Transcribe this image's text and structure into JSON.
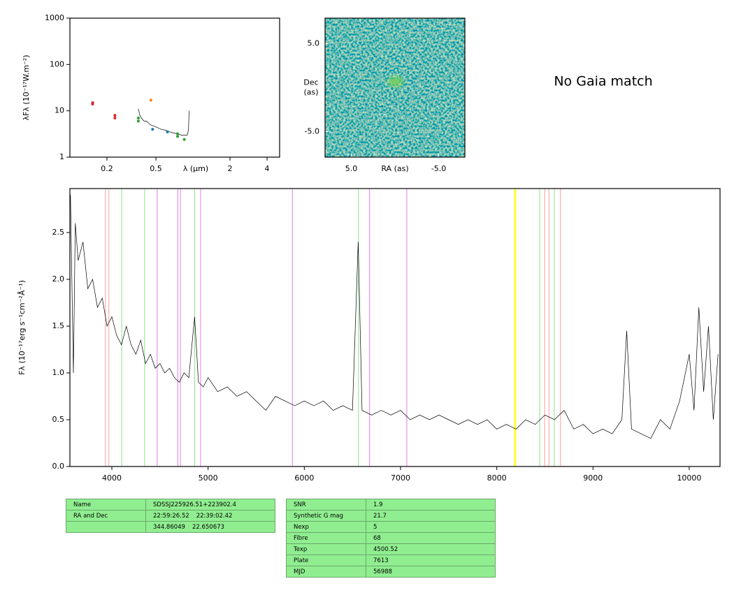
{
  "chart_data": [
    {
      "type": "scatter",
      "xlabel": "λ (μm)",
      "ylabel": "λFλ (10⁻¹⁷W.m⁻²)",
      "xlog": true,
      "ylog": true,
      "xlim": [
        0.1,
        5.06
      ],
      "ylim": [
        1,
        1000
      ],
      "xticks": [
        0.2,
        0.5,
        2,
        4
      ],
      "yticks": [
        1,
        10,
        100,
        1000
      ],
      "series": [
        {
          "mode": "line",
          "color": "#000000",
          "x": [
            0.36,
            0.37,
            0.38,
            0.4,
            0.42,
            0.45,
            0.5,
            0.55,
            0.6,
            0.65,
            0.7,
            0.75,
            0.8,
            0.85,
            0.9,
            0.92,
            0.93
          ],
          "values": [
            11,
            8,
            7,
            6,
            6,
            5,
            4.5,
            4,
            3.8,
            3.5,
            3.3,
            3.2,
            3,
            3,
            3,
            4,
            10
          ]
        },
        {
          "mode": "points",
          "color": "#d62728",
          "x": [
            0.153,
            0.153,
            0.232,
            0.232
          ],
          "values": [
            15,
            14,
            8,
            7
          ]
        },
        {
          "mode": "points",
          "color": "#ff7f0e",
          "x": [
            0.455
          ],
          "values": [
            17
          ]
        },
        {
          "mode": "points",
          "color": "#2ca02c",
          "x": [
            0.36,
            0.36,
            0.62,
            0.75,
            0.75,
            0.85
          ],
          "values": [
            7,
            6,
            3.5,
            3.2,
            2.8,
            2.4
          ]
        },
        {
          "mode": "points",
          "color": "#1f77b4",
          "x": [
            0.47,
            0.62
          ],
          "values": [
            4,
            3.5
          ]
        }
      ]
    },
    {
      "type": "image",
      "xlabel": "RA (as)",
      "ylabel": [
        "Dec",
        "(as)"
      ],
      "xlim": [
        8,
        -8
      ],
      "ylim": [
        -7.9,
        7.9
      ],
      "xticks": [
        {
          "value": 5,
          "label": "5.0"
        },
        {
          "value": -5,
          "label": "-5.0"
        }
      ],
      "yticks": [
        {
          "value": 5,
          "label": "5.0"
        },
        {
          "value": -5,
          "label": "-5.0"
        }
      ]
    },
    {
      "type": "line",
      "ylabel": "Fλ (10⁻¹⁷erg s⁻¹cm⁻²Å⁻¹)",
      "xlim": [
        3564,
        10320
      ],
      "ylim": [
        0,
        2.97
      ],
      "xticks": [
        4000,
        5000,
        6000,
        7000,
        8000,
        9000,
        10000
      ],
      "yticks": [
        {
          "value": 0,
          "label": "0.0"
        },
        0.5,
        {
          "value": 1,
          "label": "1.0"
        },
        1.5,
        {
          "value": 2,
          "label": "2.0"
        },
        2.5
      ],
      "lines": [
        {
          "x": 3934,
          "color": "#f4a0a0"
        },
        {
          "x": 3969,
          "color": "#f4a0a0"
        },
        {
          "x": 4102,
          "color": "#90e090"
        },
        {
          "x": 4341,
          "color": "#90e090"
        },
        {
          "x": 4471,
          "color": "#e080e0"
        },
        {
          "x": 4686,
          "color": "#e080e0"
        },
        {
          "x": 4713,
          "color": "#e080e0"
        },
        {
          "x": 4861,
          "color": "#90e090"
        },
        {
          "x": 4922,
          "color": "#e080e0"
        },
        {
          "x": 5876,
          "color": "#e080e0"
        },
        {
          "x": 6563,
          "color": "#90e090"
        },
        {
          "x": 6678,
          "color": "#e080e0"
        },
        {
          "x": 7065,
          "color": "#e080e0"
        },
        {
          "x": 8190,
          "color": "#ffff30",
          "width": 3
        },
        {
          "x": 8446,
          "color": "#90e090"
        },
        {
          "x": 8498,
          "color": "#f4a0a0"
        },
        {
          "x": 8542,
          "color": "#f4a0a0"
        },
        {
          "x": 8598,
          "color": "#90e090"
        },
        {
          "x": 8662,
          "color": "#f4a0a0"
        }
      ],
      "series": [
        {
          "color": "#000000",
          "x": [
            3570,
            3600,
            3620,
            3650,
            3700,
            3750,
            3800,
            3850,
            3900,
            3950,
            4000,
            4050,
            4100,
            4150,
            4200,
            4250,
            4300,
            4350,
            4400,
            4450,
            4500,
            4550,
            4600,
            4650,
            4700,
            4750,
            4800,
            4860,
            4900,
            4950,
            5000,
            5100,
            5200,
            5300,
            5400,
            5500,
            5600,
            5700,
            5800,
            5900,
            6000,
            6100,
            6200,
            6300,
            6400,
            6500,
            6560,
            6600,
            6700,
            6800,
            6900,
            7000,
            7100,
            7200,
            7300,
            7400,
            7500,
            7600,
            7700,
            7800,
            7900,
            8000,
            8100,
            8200,
            8300,
            8400,
            8500,
            8600,
            8700,
            8800,
            8900,
            9000,
            9100,
            9200,
            9300,
            9350,
            9400,
            9500,
            9600,
            9700,
            9800,
            9900,
            10000,
            10050,
            10100,
            10150,
            10200,
            10250,
            10300
          ],
          "values": [
            2.9,
            1.0,
            2.6,
            2.2,
            2.4,
            1.9,
            2.0,
            1.7,
            1.8,
            1.5,
            1.6,
            1.4,
            1.3,
            1.5,
            1.3,
            1.2,
            1.35,
            1.1,
            1.2,
            1.05,
            1.1,
            1.0,
            1.05,
            0.95,
            0.9,
            1.0,
            0.95,
            1.6,
            0.9,
            0.85,
            0.95,
            0.8,
            0.85,
            0.75,
            0.8,
            0.7,
            0.6,
            0.75,
            0.7,
            0.65,
            0.7,
            0.65,
            0.7,
            0.6,
            0.65,
            0.6,
            2.4,
            0.6,
            0.55,
            0.6,
            0.55,
            0.6,
            0.5,
            0.55,
            0.5,
            0.55,
            0.5,
            0.45,
            0.5,
            0.45,
            0.5,
            0.4,
            0.45,
            0.4,
            0.5,
            0.45,
            0.55,
            0.5,
            0.6,
            0.4,
            0.45,
            0.35,
            0.4,
            0.35,
            0.5,
            1.45,
            0.4,
            0.35,
            0.3,
            0.5,
            0.4,
            0.7,
            1.2,
            0.6,
            1.7,
            0.8,
            1.5,
            0.5,
            1.2
          ]
        }
      ]
    }
  ],
  "gaia_note": "No Gaia match",
  "tables": [
    {
      "rows": [
        {
          "label": "Name",
          "cells": [
            "SDSSJ225926.51+223902.4"
          ]
        },
        {
          "label": "RA and Dec",
          "cells": [
            "22:59:26.52",
            "22:39:02.42"
          ]
        },
        {
          "cells": [
            "344.86049",
            "22.650673"
          ]
        }
      ]
    },
    {
      "rows": [
        {
          "label": "SNR",
          "cells": [
            "1.9"
          ]
        },
        {
          "label": "Synthetic G mag",
          "cells": [
            "21.7"
          ]
        },
        {
          "label": "Nexp",
          "cells": [
            "5"
          ]
        },
        {
          "label": "Fibre",
          "cells": [
            "68"
          ]
        },
        {
          "label": "Texp",
          "cells": [
            "4500.52"
          ]
        },
        {
          "label": "Plate",
          "cells": [
            "7613"
          ]
        },
        {
          "label": "MJD",
          "cells": [
            "56988"
          ]
        }
      ]
    }
  ]
}
